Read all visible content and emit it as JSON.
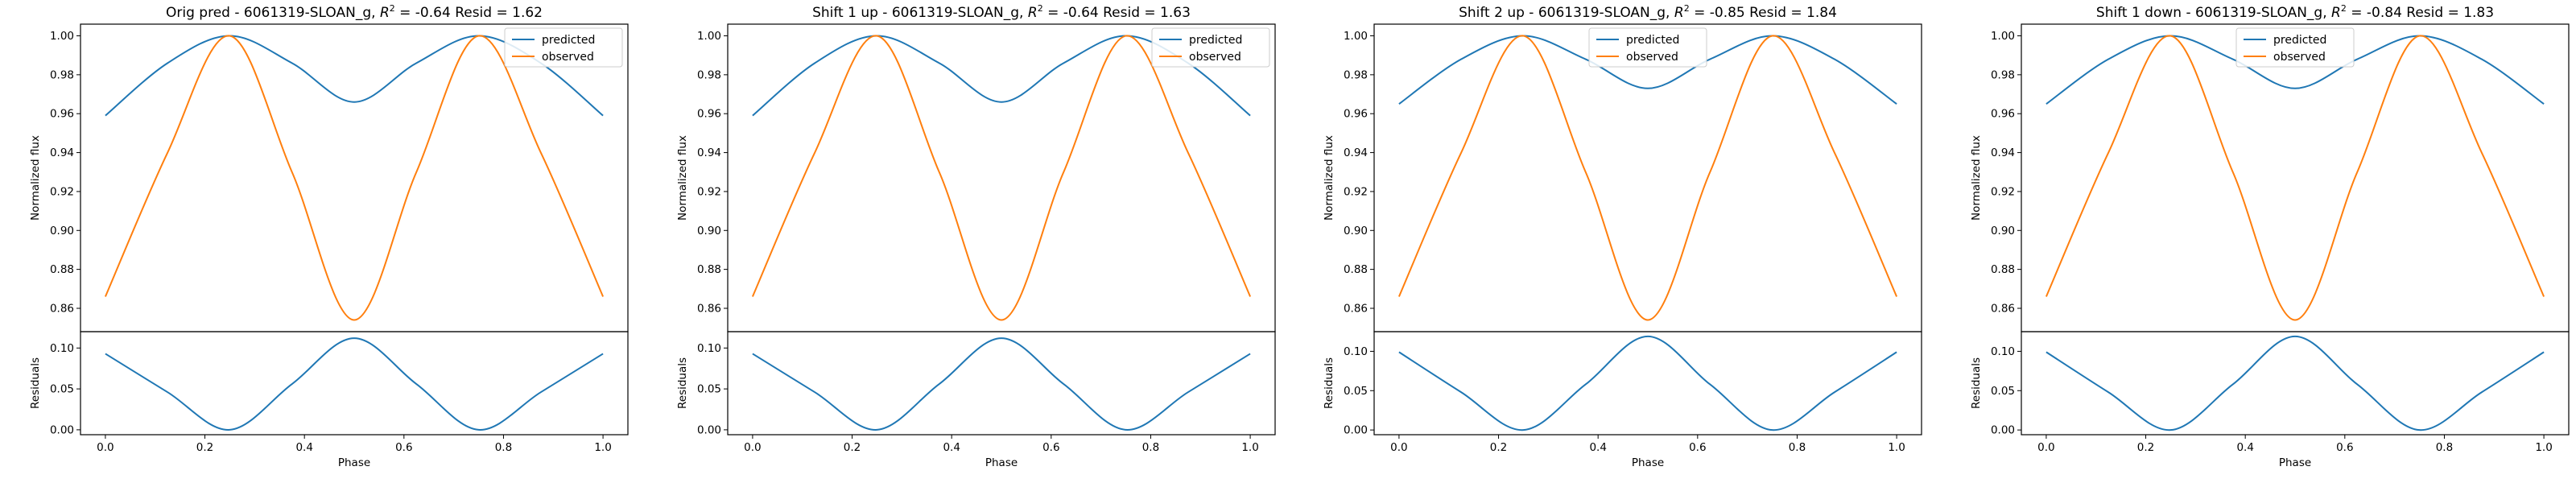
{
  "chart_data": [
    {
      "type": "line",
      "title_parts": [
        "Orig pred - 6061319-SLOAN_g, ",
        "R",
        "2",
        " = -0.64 Resid = 1.62"
      ],
      "xlabel": "Phase",
      "ylabel": "Normalized flux",
      "residual_ylabel": "Residuals",
      "x_ticks": [
        "0.0",
        "0.2",
        "0.4",
        "0.6",
        "0.8",
        "1.0"
      ],
      "y_ticks": [
        "0.86",
        "0.88",
        "0.90",
        "0.92",
        "0.94",
        "0.96",
        "0.98",
        "1.00"
      ],
      "residual_ticks": [
        "0.00",
        "0.05",
        "0.10"
      ],
      "xlim": [
        -0.05,
        1.05
      ],
      "ylim": [
        0.848,
        1.006
      ],
      "residual_ylim": [
        -0.006,
        0.12
      ],
      "legend": "top-right",
      "series": [
        {
          "name": "predicted",
          "color": "#1f77b4",
          "x": [
            0,
            0.125,
            0.25,
            0.375,
            0.5,
            0.625,
            0.75,
            0.875,
            1
          ],
          "values": [
            0.959,
            0.986,
            1.0,
            0.986,
            0.966,
            0.986,
            1.0,
            0.986,
            0.959
          ]
        },
        {
          "name": "observed",
          "color": "#ff7f0e",
          "x": [
            0,
            0.125,
            0.25,
            0.375,
            0.5,
            0.625,
            0.75,
            0.875,
            1
          ],
          "values": [
            0.866,
            0.94,
            1.0,
            0.93,
            0.854,
            0.93,
            1.0,
            0.94,
            0.866
          ]
        }
      ],
      "residuals": {
        "color": "#1f77b4",
        "x": [
          0,
          0.125,
          0.25,
          0.375,
          0.5,
          0.625,
          0.75,
          0.875,
          1
        ],
        "values": [
          0.093,
          0.046,
          0.0,
          0.056,
          0.112,
          0.056,
          0.0,
          0.046,
          0.093
        ]
      }
    },
    {
      "type": "line",
      "title_parts": [
        "Shift 1 up - 6061319-SLOAN_g, ",
        "R",
        "2",
        " = -0.64 Resid = 1.63"
      ],
      "xlabel": "Phase",
      "ylabel": "Normalized flux",
      "residual_ylabel": "Residuals",
      "x_ticks": [
        "0.0",
        "0.2",
        "0.4",
        "0.6",
        "0.8",
        "1.0"
      ],
      "y_ticks": [
        "0.86",
        "0.88",
        "0.90",
        "0.92",
        "0.94",
        "0.96",
        "0.98",
        "1.00"
      ],
      "residual_ticks": [
        "0.00",
        "0.05",
        "0.10"
      ],
      "xlim": [
        -0.05,
        1.05
      ],
      "ylim": [
        0.848,
        1.006
      ],
      "residual_ylim": [
        -0.006,
        0.12
      ],
      "legend": "top-right",
      "series": [
        {
          "name": "predicted",
          "color": "#1f77b4",
          "x": [
            0,
            0.125,
            0.25,
            0.375,
            0.5,
            0.625,
            0.75,
            0.875,
            1
          ],
          "values": [
            0.959,
            0.986,
            1.0,
            0.986,
            0.966,
            0.986,
            1.0,
            0.986,
            0.959
          ]
        },
        {
          "name": "observed",
          "color": "#ff7f0e",
          "x": [
            0,
            0.125,
            0.25,
            0.375,
            0.5,
            0.625,
            0.75,
            0.875,
            1
          ],
          "values": [
            0.866,
            0.94,
            1.0,
            0.93,
            0.854,
            0.93,
            1.0,
            0.94,
            0.866
          ]
        }
      ],
      "residuals": {
        "color": "#1f77b4",
        "x": [
          0,
          0.125,
          0.25,
          0.375,
          0.5,
          0.625,
          0.75,
          0.875,
          1
        ],
        "values": [
          0.093,
          0.046,
          0.0,
          0.056,
          0.112,
          0.056,
          0.0,
          0.046,
          0.093
        ]
      }
    },
    {
      "type": "line",
      "title_parts": [
        "Shift 2 up - 6061319-SLOAN_g, ",
        "R",
        "2",
        " = -0.85 Resid = 1.84"
      ],
      "xlabel": "Phase",
      "ylabel": "Normalized flux",
      "residual_ylabel": "Residuals",
      "x_ticks": [
        "0.0",
        "0.2",
        "0.4",
        "0.6",
        "0.8",
        "1.0"
      ],
      "y_ticks": [
        "0.86",
        "0.88",
        "0.90",
        "0.92",
        "0.94",
        "0.96",
        "0.98",
        "1.00"
      ],
      "residual_ticks": [
        "0.00",
        "0.05",
        "0.10"
      ],
      "xlim": [
        -0.05,
        1.05
      ],
      "ylim": [
        0.848,
        1.006
      ],
      "residual_ylim": [
        -0.006,
        0.125
      ],
      "legend": "top-center",
      "series": [
        {
          "name": "predicted",
          "color": "#1f77b4",
          "x": [
            0,
            0.125,
            0.25,
            0.375,
            0.5,
            0.625,
            0.75,
            0.875,
            1
          ],
          "values": [
            0.965,
            0.988,
            1.0,
            0.988,
            0.973,
            0.988,
            1.0,
            0.988,
            0.965
          ]
        },
        {
          "name": "observed",
          "color": "#ff7f0e",
          "x": [
            0,
            0.125,
            0.25,
            0.375,
            0.5,
            0.625,
            0.75,
            0.875,
            1
          ],
          "values": [
            0.866,
            0.94,
            1.0,
            0.93,
            0.854,
            0.93,
            1.0,
            0.94,
            0.866
          ]
        }
      ],
      "residuals": {
        "color": "#1f77b4",
        "x": [
          0,
          0.125,
          0.25,
          0.375,
          0.5,
          0.625,
          0.75,
          0.875,
          1
        ],
        "values": [
          0.099,
          0.048,
          0.0,
          0.058,
          0.119,
          0.058,
          0.0,
          0.048,
          0.099
        ]
      }
    },
    {
      "type": "line",
      "title_parts": [
        "Shift 1 down - 6061319-SLOAN_g, ",
        "R",
        "2",
        " = -0.84 Resid = 1.83"
      ],
      "xlabel": "Phase",
      "ylabel": "Normalized flux",
      "residual_ylabel": "Residuals",
      "x_ticks": [
        "0.0",
        "0.2",
        "0.4",
        "0.6",
        "0.8",
        "1.0"
      ],
      "y_ticks": [
        "0.86",
        "0.88",
        "0.90",
        "0.92",
        "0.94",
        "0.96",
        "0.98",
        "1.00"
      ],
      "residual_ticks": [
        "0.00",
        "0.05",
        "0.10"
      ],
      "xlim": [
        -0.05,
        1.05
      ],
      "ylim": [
        0.848,
        1.006
      ],
      "residual_ylim": [
        -0.006,
        0.125
      ],
      "legend": "top-center",
      "series": [
        {
          "name": "predicted",
          "color": "#1f77b4",
          "x": [
            0,
            0.125,
            0.25,
            0.375,
            0.5,
            0.625,
            0.75,
            0.875,
            1
          ],
          "values": [
            0.965,
            0.988,
            1.0,
            0.988,
            0.973,
            0.988,
            1.0,
            0.988,
            0.965
          ]
        },
        {
          "name": "observed",
          "color": "#ff7f0e",
          "x": [
            0,
            0.125,
            0.25,
            0.375,
            0.5,
            0.625,
            0.75,
            0.875,
            1
          ],
          "values": [
            0.866,
            0.94,
            1.0,
            0.93,
            0.854,
            0.93,
            1.0,
            0.94,
            0.866
          ]
        }
      ],
      "residuals": {
        "color": "#1f77b4",
        "x": [
          0,
          0.125,
          0.25,
          0.375,
          0.5,
          0.625,
          0.75,
          0.875,
          1
        ],
        "values": [
          0.099,
          0.048,
          0.0,
          0.058,
          0.119,
          0.058,
          0.0,
          0.048,
          0.099
        ]
      }
    }
  ]
}
